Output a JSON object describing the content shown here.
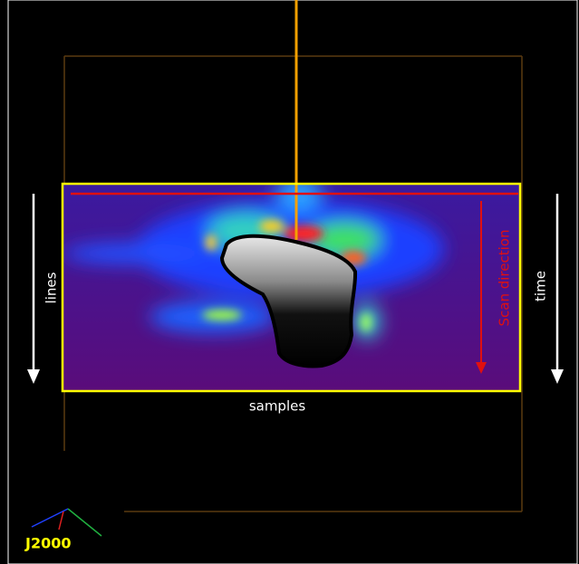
{
  "labels": {
    "left": "lines",
    "bottom": "samples",
    "right": "time",
    "scan": "Scan direction",
    "frame": "J2000"
  }
}
